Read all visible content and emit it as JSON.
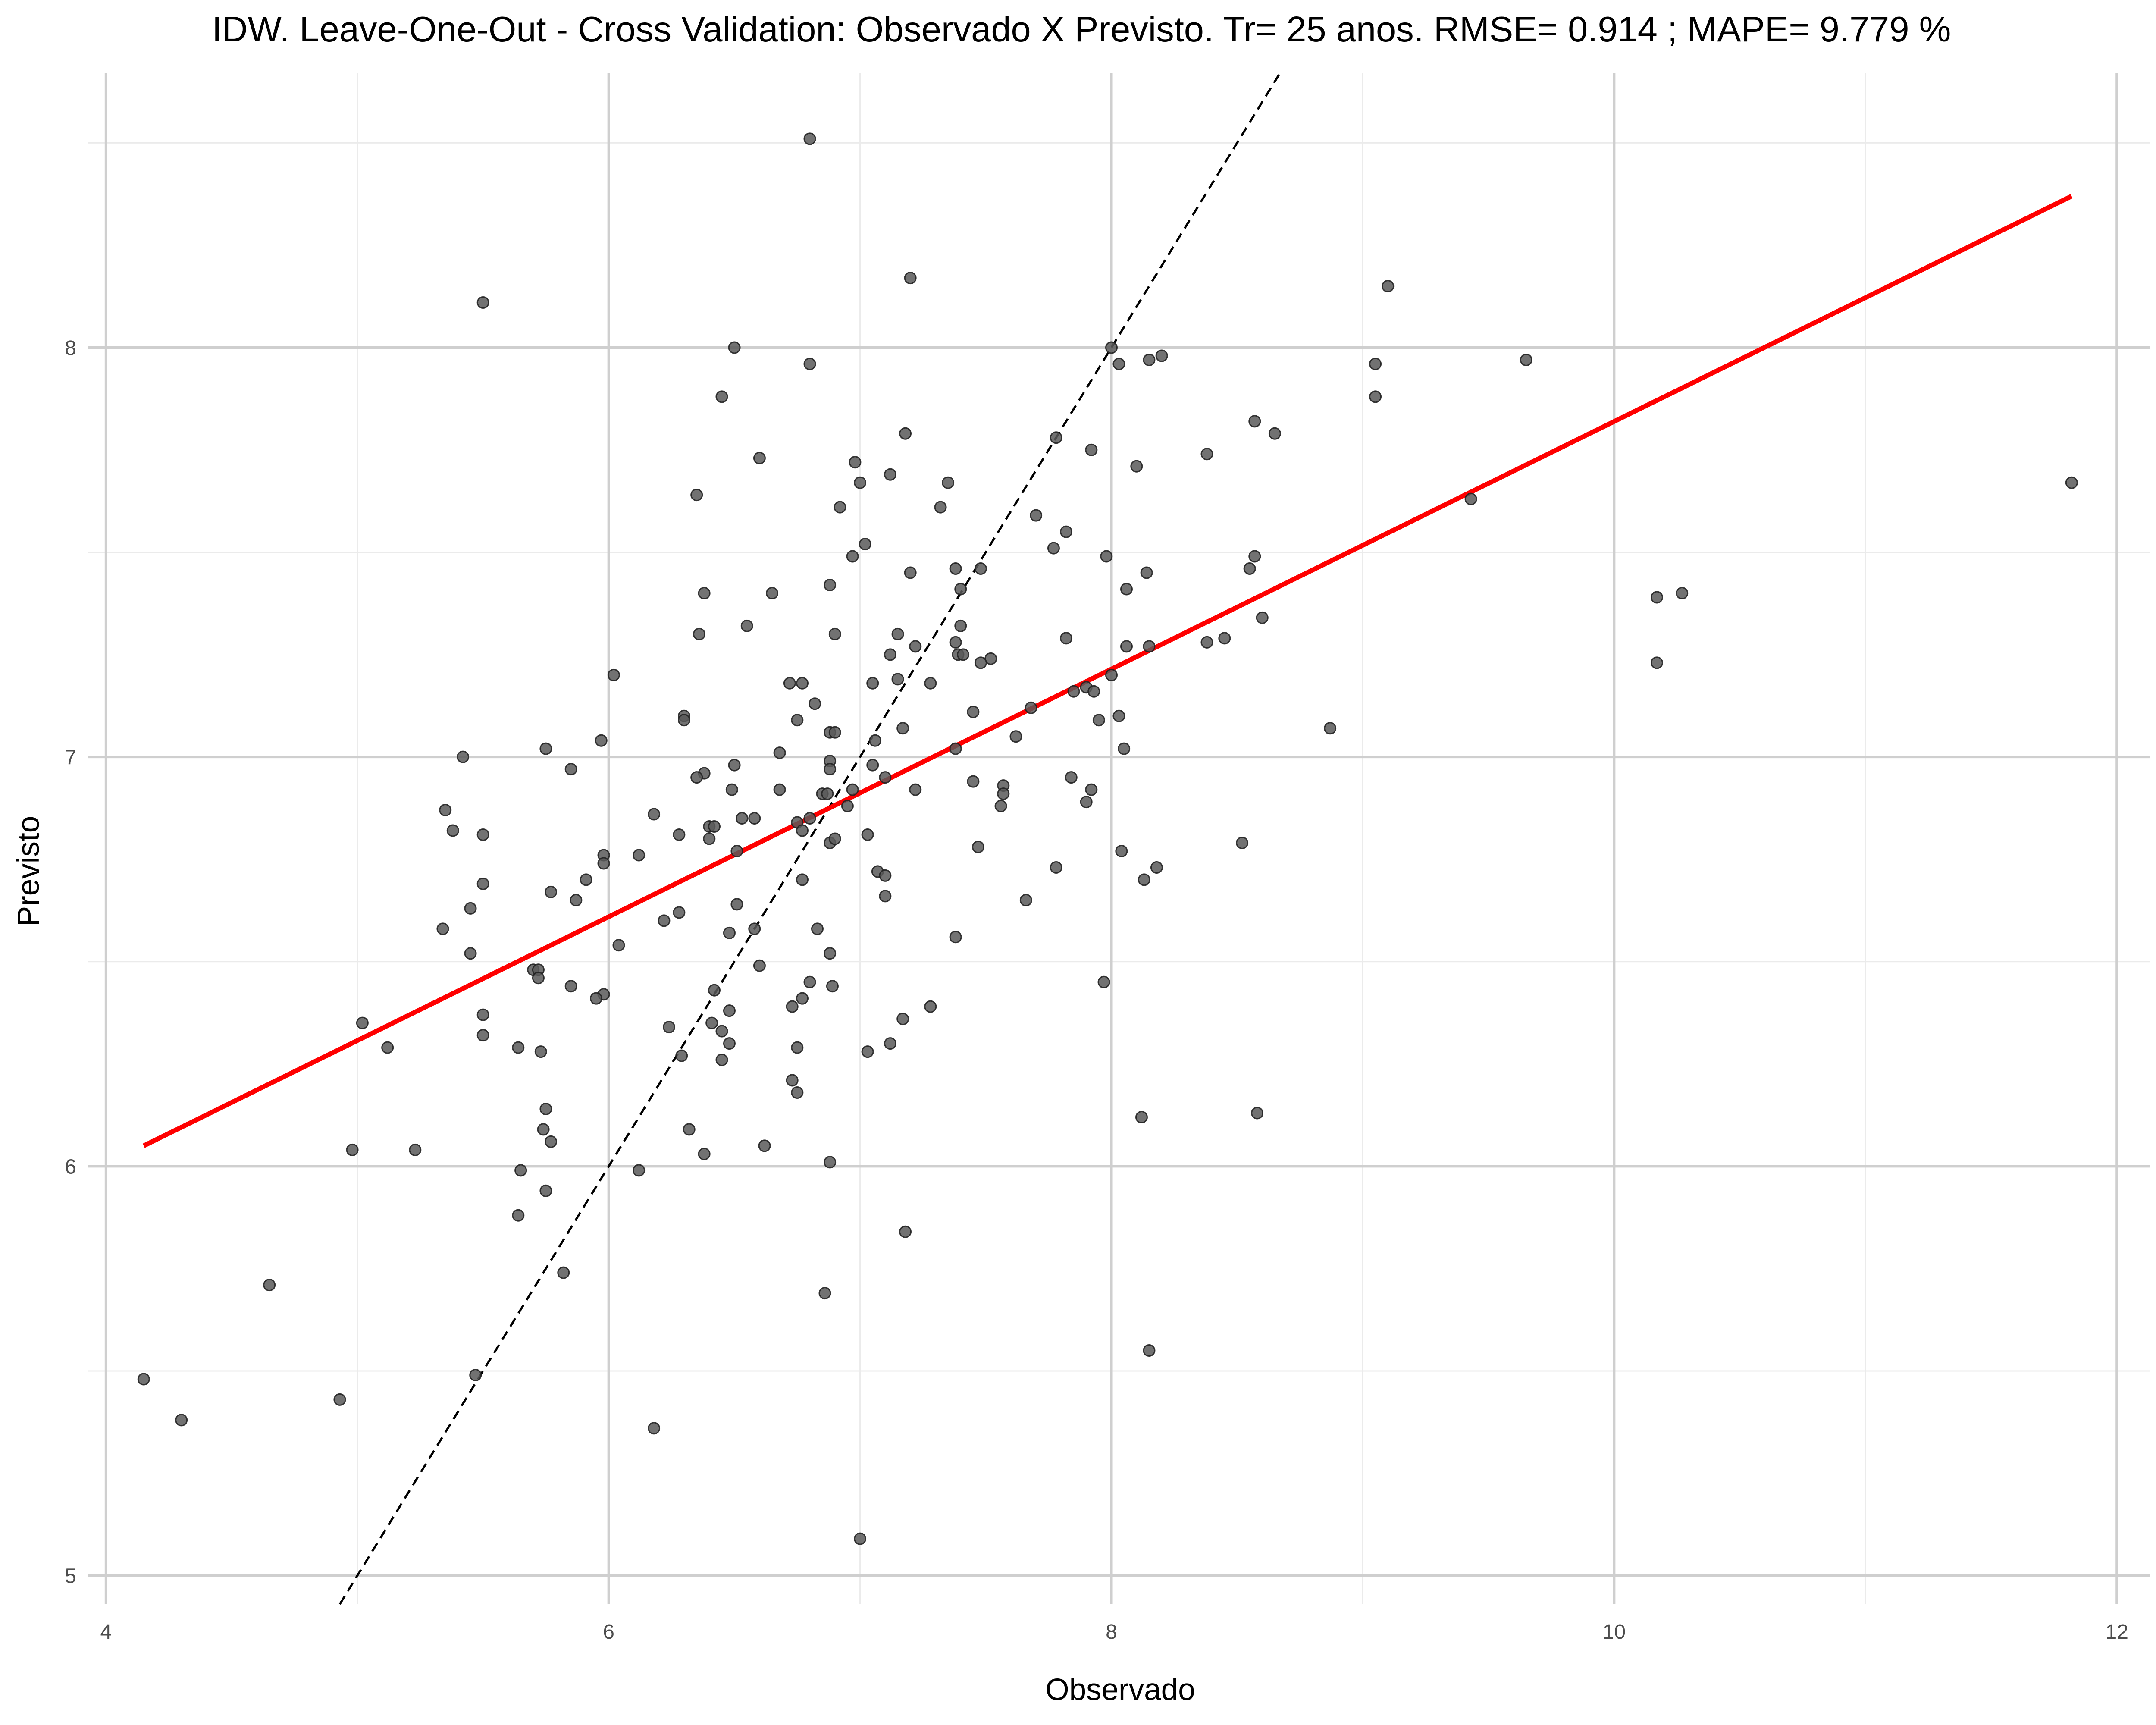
{
  "colors": {
    "point": "#595959",
    "fit_line": "#ff0000",
    "identity_line": "#000000",
    "grid_major": "#cfcfcf",
    "grid_minor": "#ebebeb",
    "tick_text": "#4d4d4d"
  },
  "chart_data": {
    "type": "scatter",
    "title": "IDW. Leave-One-Out - Cross Validation: Observado X Previsto. Tr= 25 anos. RMSE= 0.914 ; MAPE= 9.779 %",
    "xlabel": "Observado",
    "ylabel": "Previsto",
    "xlim": [
      3.93,
      12.13
    ],
    "ylim": [
      4.93,
      8.67
    ],
    "x_ticks": [
      4,
      6,
      8,
      10,
      12
    ],
    "x_tick_labels": [
      "4",
      "6",
      "8",
      "10",
      "12"
    ],
    "y_ticks": [
      5,
      6,
      7,
      8
    ],
    "y_tick_labels": [
      "5",
      "6",
      "7",
      "8"
    ],
    "x_minor": [
      5,
      7,
      9,
      11
    ],
    "y_minor": [
      5.5,
      6.5,
      7.5,
      8.5
    ],
    "grid": true,
    "legend": "none",
    "fit_line": {
      "x": [
        4.15,
        11.82
      ],
      "y": [
        6.05,
        8.37
      ]
    },
    "identity_line": {
      "x": [
        4.93,
        8.67
      ],
      "y": [
        4.93,
        8.67
      ]
    },
    "points": [
      [
        6.8,
        8.51
      ],
      [
        5.5,
        8.11
      ],
      [
        7.2,
        8.17
      ],
      [
        9.1,
        8.15
      ],
      [
        6.5,
        8.0
      ],
      [
        6.8,
        7.96
      ],
      [
        8.0,
        8.0
      ],
      [
        8.2,
        7.98
      ],
      [
        8.15,
        7.97
      ],
      [
        8.03,
        7.96
      ],
      [
        9.05,
        7.96
      ],
      [
        9.65,
        7.97
      ],
      [
        6.45,
        7.88
      ],
      [
        9.05,
        7.88
      ],
      [
        8.57,
        7.82
      ],
      [
        8.65,
        7.79
      ],
      [
        7.18,
        7.79
      ],
      [
        7.78,
        7.78
      ],
      [
        7.92,
        7.75
      ],
      [
        8.38,
        7.74
      ],
      [
        6.6,
        7.73
      ],
      [
        6.98,
        7.72
      ],
      [
        8.1,
        7.71
      ],
      [
        7.12,
        7.69
      ],
      [
        7.0,
        7.67
      ],
      [
        7.35,
        7.67
      ],
      [
        11.82,
        7.67
      ],
      [
        6.35,
        7.64
      ],
      [
        9.43,
        7.63
      ],
      [
        6.92,
        7.61
      ],
      [
        7.32,
        7.61
      ],
      [
        7.7,
        7.59
      ],
      [
        7.82,
        7.55
      ],
      [
        7.02,
        7.52
      ],
      [
        7.77,
        7.51
      ],
      [
        6.97,
        7.49
      ],
      [
        7.98,
        7.49
      ],
      [
        8.57,
        7.49
      ],
      [
        8.55,
        7.46
      ],
      [
        7.2,
        7.45
      ],
      [
        7.38,
        7.46
      ],
      [
        7.48,
        7.46
      ],
      [
        8.14,
        7.45
      ],
      [
        6.88,
        7.42
      ],
      [
        7.4,
        7.41
      ],
      [
        8.06,
        7.41
      ],
      [
        6.38,
        7.4
      ],
      [
        6.65,
        7.4
      ],
      [
        10.27,
        7.4
      ],
      [
        10.17,
        7.39
      ],
      [
        8.6,
        7.34
      ],
      [
        6.55,
        7.32
      ],
      [
        7.4,
        7.32
      ],
      [
        6.36,
        7.3
      ],
      [
        6.9,
        7.3
      ],
      [
        7.15,
        7.3
      ],
      [
        7.82,
        7.29
      ],
      [
        8.45,
        7.29
      ],
      [
        7.38,
        7.28
      ],
      [
        8.38,
        7.28
      ],
      [
        8.15,
        7.27
      ],
      [
        8.06,
        7.27
      ],
      [
        7.22,
        7.27
      ],
      [
        7.12,
        7.25
      ],
      [
        7.39,
        7.25
      ],
      [
        7.41,
        7.25
      ],
      [
        7.52,
        7.24
      ],
      [
        7.48,
        7.23
      ],
      [
        10.17,
        7.23
      ],
      [
        6.02,
        7.2
      ],
      [
        8.0,
        7.2
      ],
      [
        6.72,
        7.18
      ],
      [
        6.77,
        7.18
      ],
      [
        7.05,
        7.18
      ],
      [
        7.28,
        7.18
      ],
      [
        7.15,
        7.19
      ],
      [
        7.9,
        7.17
      ],
      [
        7.85,
        7.16
      ],
      [
        7.93,
        7.16
      ],
      [
        6.82,
        7.13
      ],
      [
        7.68,
        7.12
      ],
      [
        7.45,
        7.11
      ],
      [
        6.3,
        7.1
      ],
      [
        6.3,
        7.09
      ],
      [
        6.75,
        7.09
      ],
      [
        7.95,
        7.09
      ],
      [
        8.03,
        7.1
      ],
      [
        7.17,
        7.07
      ],
      [
        8.87,
        7.07
      ],
      [
        6.88,
        7.06
      ],
      [
        6.9,
        7.06
      ],
      [
        7.62,
        7.05
      ],
      [
        5.97,
        7.04
      ],
      [
        7.06,
        7.04
      ],
      [
        5.75,
        7.02
      ],
      [
        7.38,
        7.02
      ],
      [
        8.05,
        7.02
      ],
      [
        6.68,
        7.01
      ],
      [
        5.42,
        7.0
      ],
      [
        6.88,
        6.99
      ],
      [
        6.5,
        6.98
      ],
      [
        7.05,
        6.98
      ],
      [
        5.85,
        6.97
      ],
      [
        6.38,
        6.96
      ],
      [
        6.88,
        6.97
      ],
      [
        7.1,
        6.95
      ],
      [
        6.35,
        6.95
      ],
      [
        7.84,
        6.95
      ],
      [
        7.45,
        6.94
      ],
      [
        7.57,
        6.93
      ],
      [
        6.49,
        6.92
      ],
      [
        6.68,
        6.92
      ],
      [
        6.97,
        6.92
      ],
      [
        7.22,
        6.92
      ],
      [
        7.57,
        6.91
      ],
      [
        7.92,
        6.92
      ],
      [
        6.85,
        6.91
      ],
      [
        6.87,
        6.91
      ],
      [
        7.56,
        6.88
      ],
      [
        7.9,
        6.89
      ],
      [
        6.95,
        6.88
      ],
      [
        5.35,
        6.87
      ],
      [
        6.18,
        6.86
      ],
      [
        6.53,
        6.85
      ],
      [
        6.58,
        6.85
      ],
      [
        6.8,
        6.85
      ],
      [
        6.75,
        6.84
      ],
      [
        6.4,
        6.83
      ],
      [
        6.42,
        6.83
      ],
      [
        6.77,
        6.82
      ],
      [
        7.03,
        6.81
      ],
      [
        5.38,
        6.82
      ],
      [
        5.5,
        6.81
      ],
      [
        6.28,
        6.81
      ],
      [
        6.4,
        6.8
      ],
      [
        6.88,
        6.79
      ],
      [
        6.9,
        6.8
      ],
      [
        8.52,
        6.79
      ],
      [
        7.47,
        6.78
      ],
      [
        6.51,
        6.77
      ],
      [
        6.12,
        6.76
      ],
      [
        8.04,
        6.77
      ],
      [
        5.98,
        6.76
      ],
      [
        5.98,
        6.74
      ],
      [
        7.78,
        6.73
      ],
      [
        8.18,
        6.73
      ],
      [
        7.07,
        6.72
      ],
      [
        7.1,
        6.71
      ],
      [
        6.77,
        6.7
      ],
      [
        5.91,
        6.7
      ],
      [
        8.13,
        6.7
      ],
      [
        5.5,
        6.69
      ],
      [
        5.77,
        6.67
      ],
      [
        7.1,
        6.66
      ],
      [
        7.66,
        6.65
      ],
      [
        5.87,
        6.65
      ],
      [
        5.45,
        6.63
      ],
      [
        6.51,
        6.64
      ],
      [
        6.28,
        6.62
      ],
      [
        6.22,
        6.6
      ],
      [
        5.34,
        6.58
      ],
      [
        6.58,
        6.58
      ],
      [
        6.83,
        6.58
      ],
      [
        6.48,
        6.57
      ],
      [
        7.38,
        6.56
      ],
      [
        6.04,
        6.54
      ],
      [
        5.45,
        6.52
      ],
      [
        6.88,
        6.52
      ],
      [
        6.6,
        6.49
      ],
      [
        5.7,
        6.48
      ],
      [
        5.72,
        6.48
      ],
      [
        5.72,
        6.46
      ],
      [
        6.8,
        6.45
      ],
      [
        7.97,
        6.45
      ],
      [
        5.85,
        6.44
      ],
      [
        6.89,
        6.44
      ],
      [
        6.42,
        6.43
      ],
      [
        5.98,
        6.42
      ],
      [
        5.95,
        6.41
      ],
      [
        6.77,
        6.41
      ],
      [
        6.73,
        6.39
      ],
      [
        7.28,
        6.39
      ],
      [
        6.48,
        6.38
      ],
      [
        5.5,
        6.37
      ],
      [
        7.17,
        6.36
      ],
      [
        5.02,
        6.35
      ],
      [
        6.41,
        6.35
      ],
      [
        6.24,
        6.34
      ],
      [
        6.45,
        6.33
      ],
      [
        5.5,
        6.32
      ],
      [
        6.48,
        6.3
      ],
      [
        7.12,
        6.3
      ],
      [
        5.64,
        6.29
      ],
      [
        5.12,
        6.29
      ],
      [
        6.75,
        6.29
      ],
      [
        5.73,
        6.28
      ],
      [
        7.03,
        6.28
      ],
      [
        6.29,
        6.27
      ],
      [
        6.45,
        6.26
      ],
      [
        6.73,
        6.21
      ],
      [
        6.75,
        6.18
      ],
      [
        5.75,
        6.14
      ],
      [
        8.12,
        6.12
      ],
      [
        8.58,
        6.13
      ],
      [
        5.74,
        6.09
      ],
      [
        6.32,
        6.09
      ],
      [
        5.77,
        6.06
      ],
      [
        6.62,
        6.05
      ],
      [
        4.98,
        6.04
      ],
      [
        5.23,
        6.04
      ],
      [
        6.38,
        6.03
      ],
      [
        6.88,
        6.01
      ],
      [
        6.12,
        5.99
      ],
      [
        5.65,
        5.99
      ],
      [
        5.75,
        5.94
      ],
      [
        5.64,
        5.88
      ],
      [
        7.18,
        5.84
      ],
      [
        5.82,
        5.74
      ],
      [
        4.65,
        5.71
      ],
      [
        6.86,
        5.69
      ],
      [
        8.15,
        5.55
      ],
      [
        5.47,
        5.49
      ],
      [
        4.15,
        5.48
      ],
      [
        4.93,
        5.43
      ],
      [
        4.3,
        5.38
      ],
      [
        6.18,
        5.36
      ],
      [
        7.0,
        5.09
      ]
    ]
  }
}
